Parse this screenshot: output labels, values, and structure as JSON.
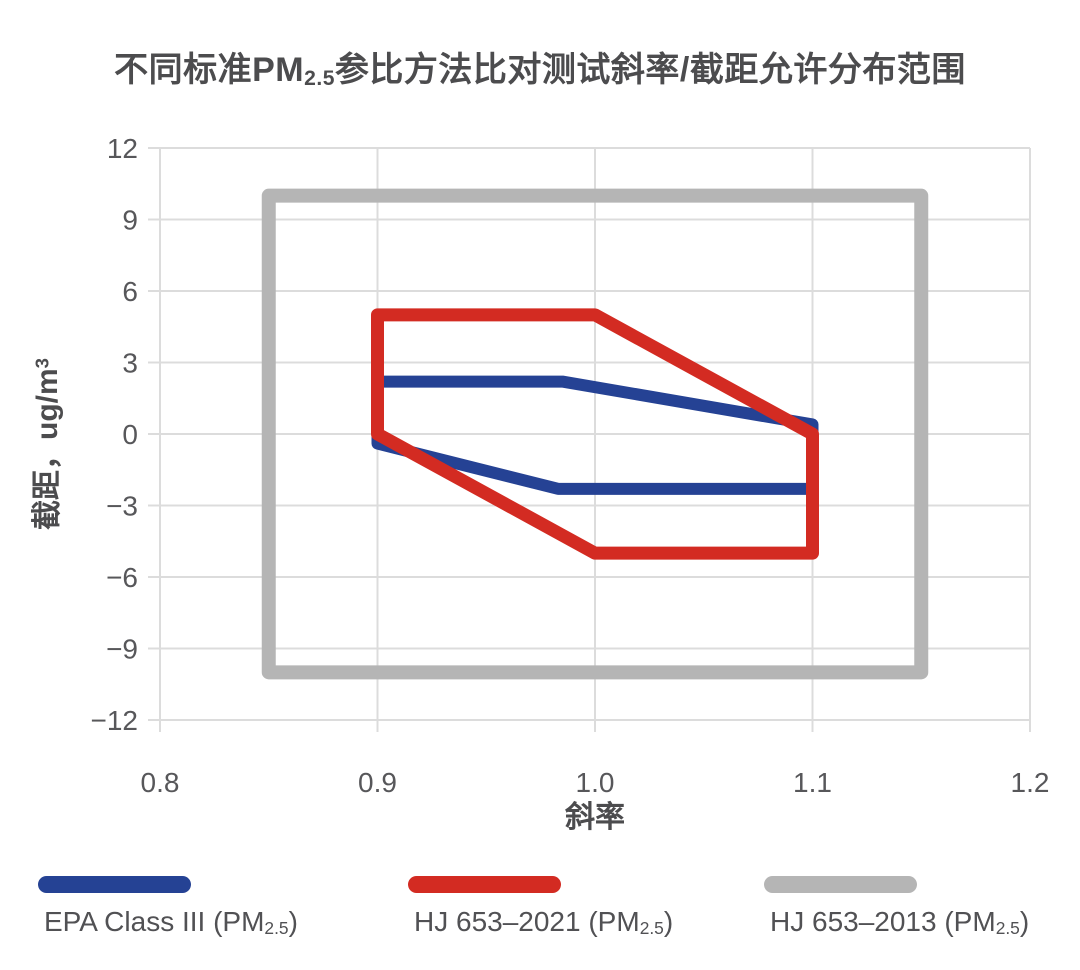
{
  "title": {
    "pre": "不同标准PM",
    "sub": "2.5",
    "post": "参比方法比对测试斜率/截距允许分布范围"
  },
  "axes": {
    "x": {
      "label": "斜率",
      "tick_labels": [
        "0.8",
        "0.9",
        "1.0",
        "1.1",
        "1.2"
      ]
    },
    "y": {
      "label_pre": "截距，ug/m",
      "label_sup": "3",
      "tick_labels": [
        "12",
        "9",
        "6",
        "3",
        "0",
        "−3",
        "−6",
        "−9",
        "−12"
      ]
    }
  },
  "legend": {
    "items": [
      {
        "pre": "EPA Class III (PM",
        "sub": "2.5",
        "post": ")",
        "color": "#254294"
      },
      {
        "pre": "HJ 653–2021 (PM",
        "sub": "2.5",
        "post": ")",
        "color": "#D32B22"
      },
      {
        "pre": "HJ 653–2013 (PM",
        "sub": "2.5",
        "post": ")",
        "color": "#B5B5B5"
      }
    ]
  },
  "chart_data": {
    "type": "line",
    "subtype": "closed-polygon-regions",
    "title": "不同标准PM2.5参比方法比对测试斜率/截距允许分布范围",
    "xlabel": "斜率",
    "ylabel": "截距，ug/m3",
    "xlim": [
      0.8,
      1.2
    ],
    "ylim": [
      -12,
      12
    ],
    "x_ticks": [
      0.8,
      0.9,
      1.0,
      1.1,
      1.2
    ],
    "y_ticks": [
      12,
      9,
      6,
      3,
      0,
      -3,
      -6,
      -9,
      -12
    ],
    "grid": true,
    "legend_position": "bottom",
    "series": [
      {
        "id": "epa-class-iii",
        "name": "EPA Class III (PM2.5)",
        "color": "#254294",
        "stroke_width": 12,
        "z": 1,
        "closed": true,
        "points": [
          [
            0.9,
            2.2
          ],
          [
            0.985,
            2.2
          ],
          [
            1.1,
            0.4
          ],
          [
            1.1,
            -2.3
          ],
          [
            0.983,
            -2.3
          ],
          [
            0.9,
            -0.4
          ]
        ]
      },
      {
        "id": "hj-653-2021",
        "name": "HJ 653-2021 (PM2.5)",
        "color": "#D32B22",
        "stroke_width": 13,
        "z": 2,
        "closed": true,
        "points": [
          [
            0.9,
            5
          ],
          [
            1.0,
            5
          ],
          [
            1.1,
            0
          ],
          [
            1.1,
            -5
          ],
          [
            1.0,
            -5
          ],
          [
            0.9,
            0
          ]
        ]
      },
      {
        "id": "hj-653-2013",
        "name": "HJ 653-2013 (PM2.5)",
        "color": "#B5B5B5",
        "stroke_width": 14,
        "z": 0,
        "closed": true,
        "points": [
          [
            0.85,
            10
          ],
          [
            1.15,
            10
          ],
          [
            1.15,
            -10
          ],
          [
            0.85,
            -10
          ]
        ]
      }
    ],
    "style": {
      "grid_color": "#dcdcdc",
      "tick_label_color": "#57575a",
      "text_color": "#4c4c4e",
      "background": "#ffffff"
    }
  }
}
